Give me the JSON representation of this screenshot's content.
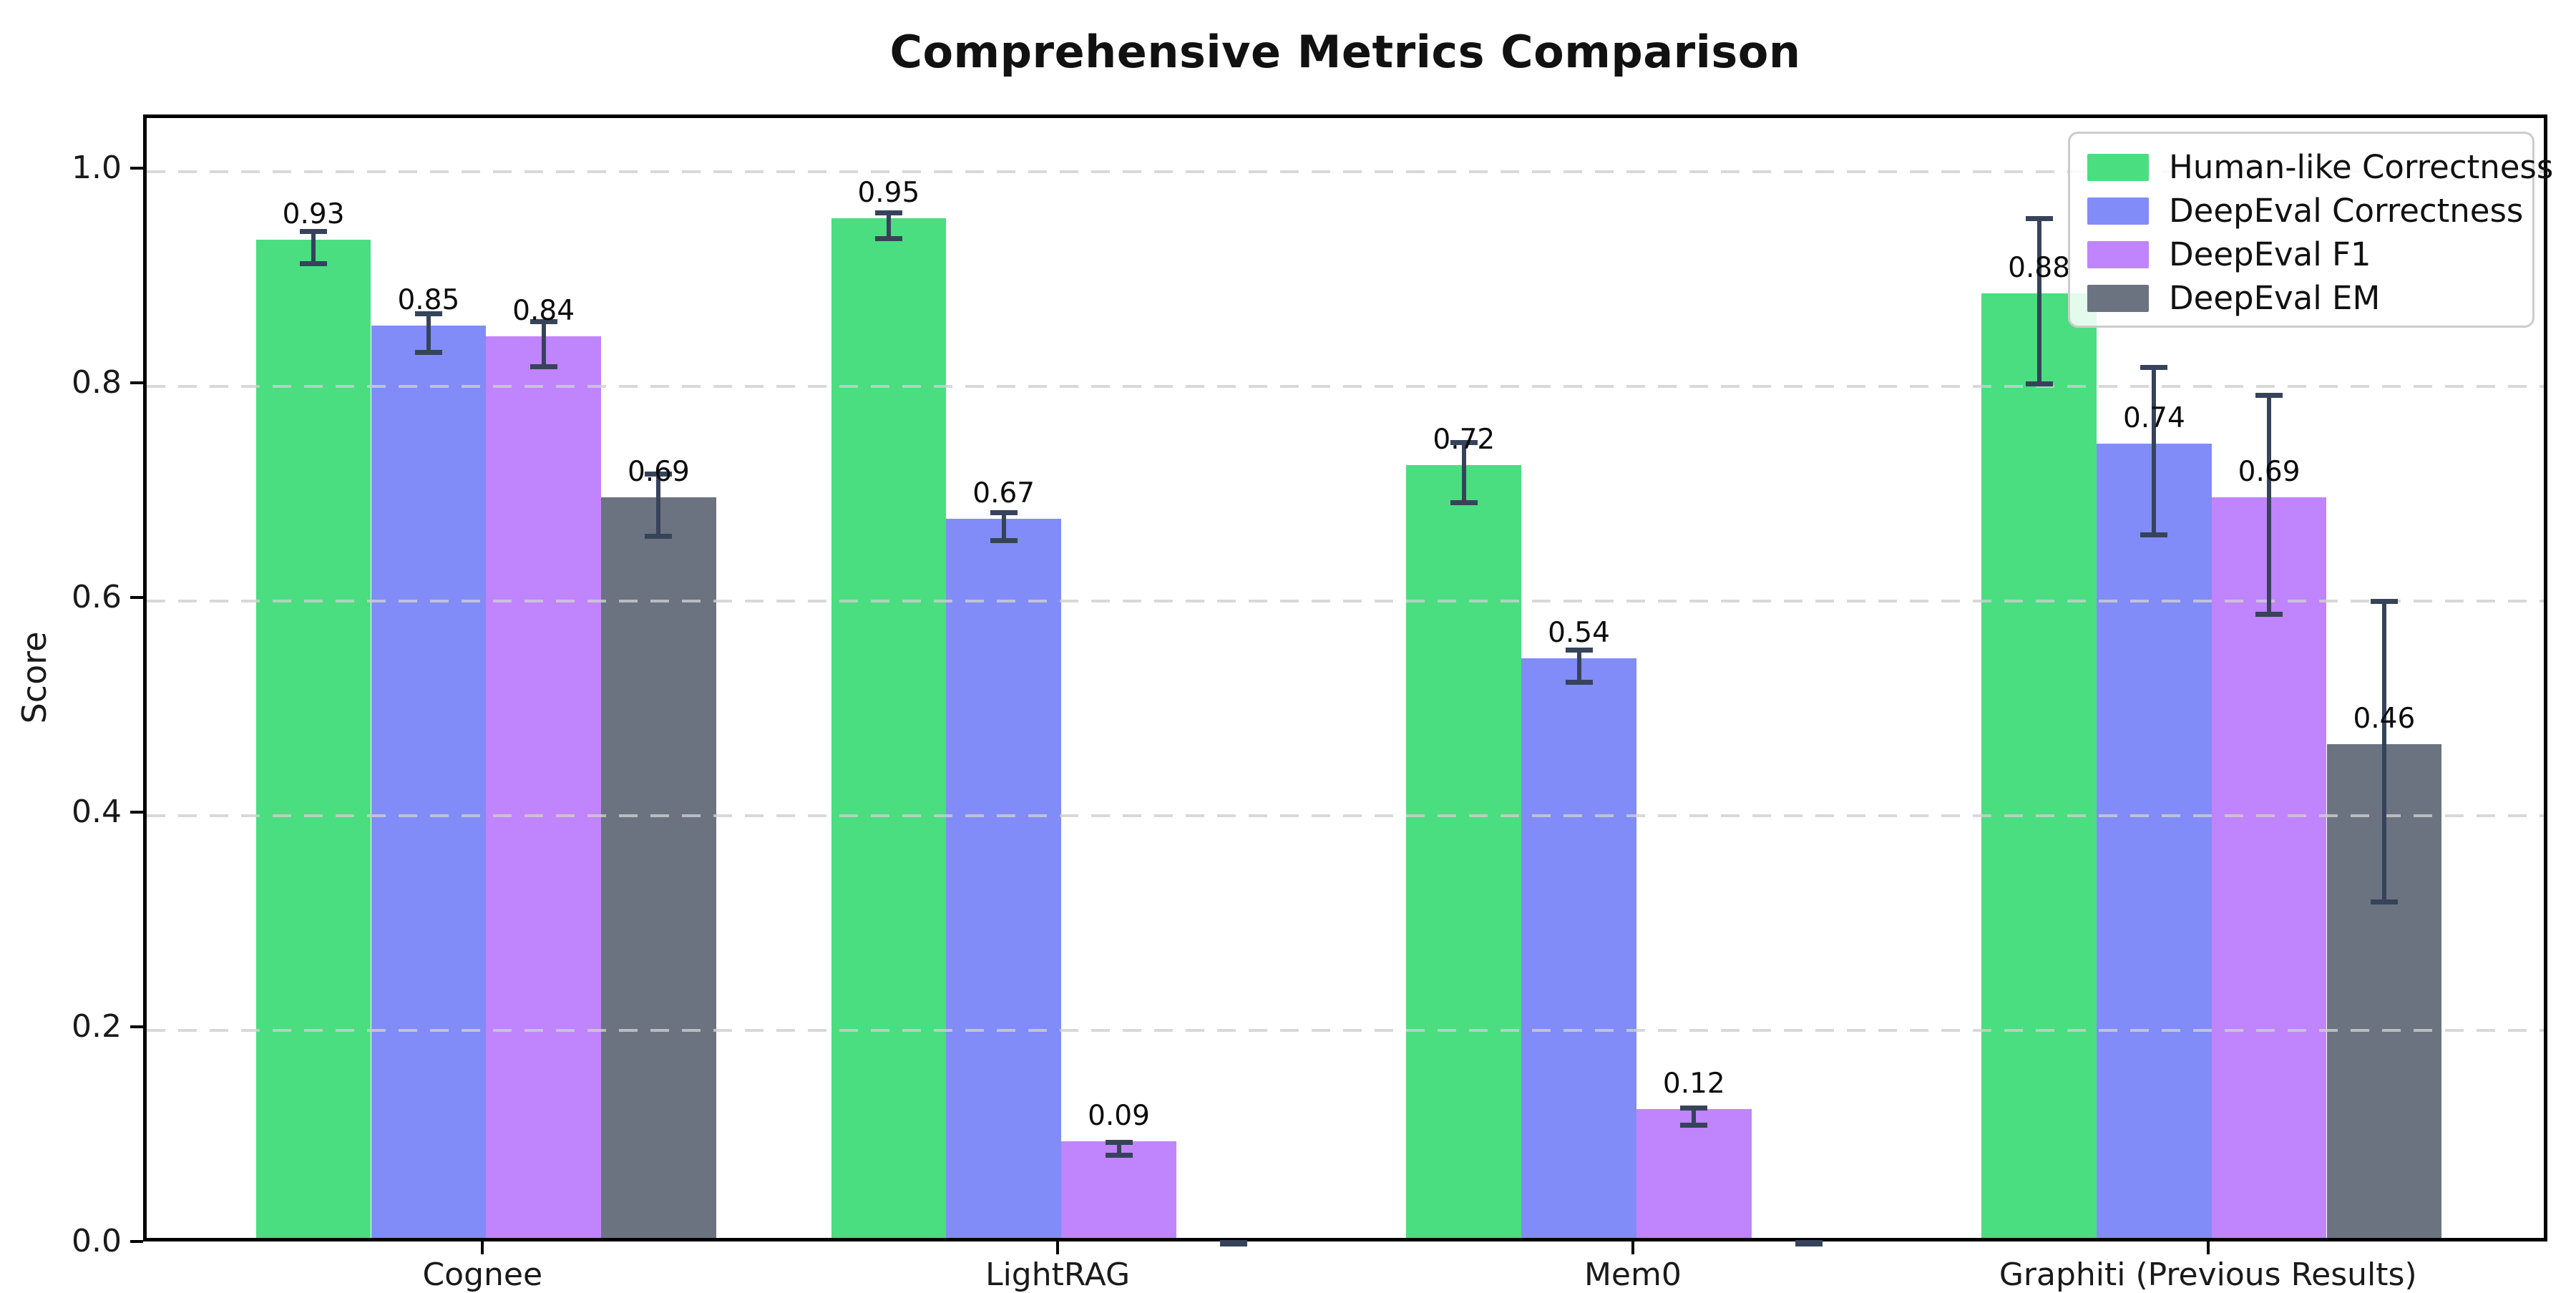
{
  "figure": {
    "title": "Comprehensive Metrics Comparison",
    "ylabel": "Score"
  },
  "chart_data": {
    "type": "bar",
    "title": "Comprehensive Metrics Comparison",
    "xlabel": "",
    "ylabel": "Score",
    "categories": [
      "Cognee",
      "LightRAG",
      "Mem0",
      "Graphiti (Previous Results)"
    ],
    "series": [
      {
        "name": "Human-like Correctness",
        "color": "#4ade80",
        "values": [
          0.93,
          0.95,
          0.72,
          0.88
        ],
        "errors": [
          0.015,
          0.012,
          0.028,
          0.077
        ]
      },
      {
        "name": "DeepEval Correctness",
        "color": "#818cf8",
        "values": [
          0.85,
          0.67,
          0.54,
          0.74
        ],
        "errors": [
          0.018,
          0.013,
          0.015,
          0.078
        ]
      },
      {
        "name": "DeepEval F1",
        "color": "#c084fc",
        "values": [
          0.84,
          0.09,
          0.12,
          0.69
        ],
        "errors": [
          0.021,
          0.006,
          0.008,
          0.102
        ]
      },
      {
        "name": "DeepEval EM",
        "color": "#6b7280",
        "values": [
          0.69,
          0.0,
          0.0,
          0.46
        ],
        "errors": [
          0.029,
          0.003,
          0.003,
          0.14
        ]
      }
    ],
    "ylim": [
      0,
      1.05
    ],
    "yticks": [
      "0.0",
      "0.2",
      "0.4",
      "0.6",
      "0.8",
      "1.0"
    ],
    "bar_width_units": 0.2,
    "value_label_format": "0.00",
    "hide_zero_value_labels": true,
    "grid": {
      "axis": "y",
      "style": "dashed",
      "color": "#cfcfcf",
      "drawn_above_bars": true
    },
    "errorbar_color": "#36435a",
    "legend": {
      "position": "upper right",
      "entries": [
        "Human-like Correctness",
        "DeepEval Correctness",
        "DeepEval F1",
        "DeepEval EM"
      ]
    }
  }
}
